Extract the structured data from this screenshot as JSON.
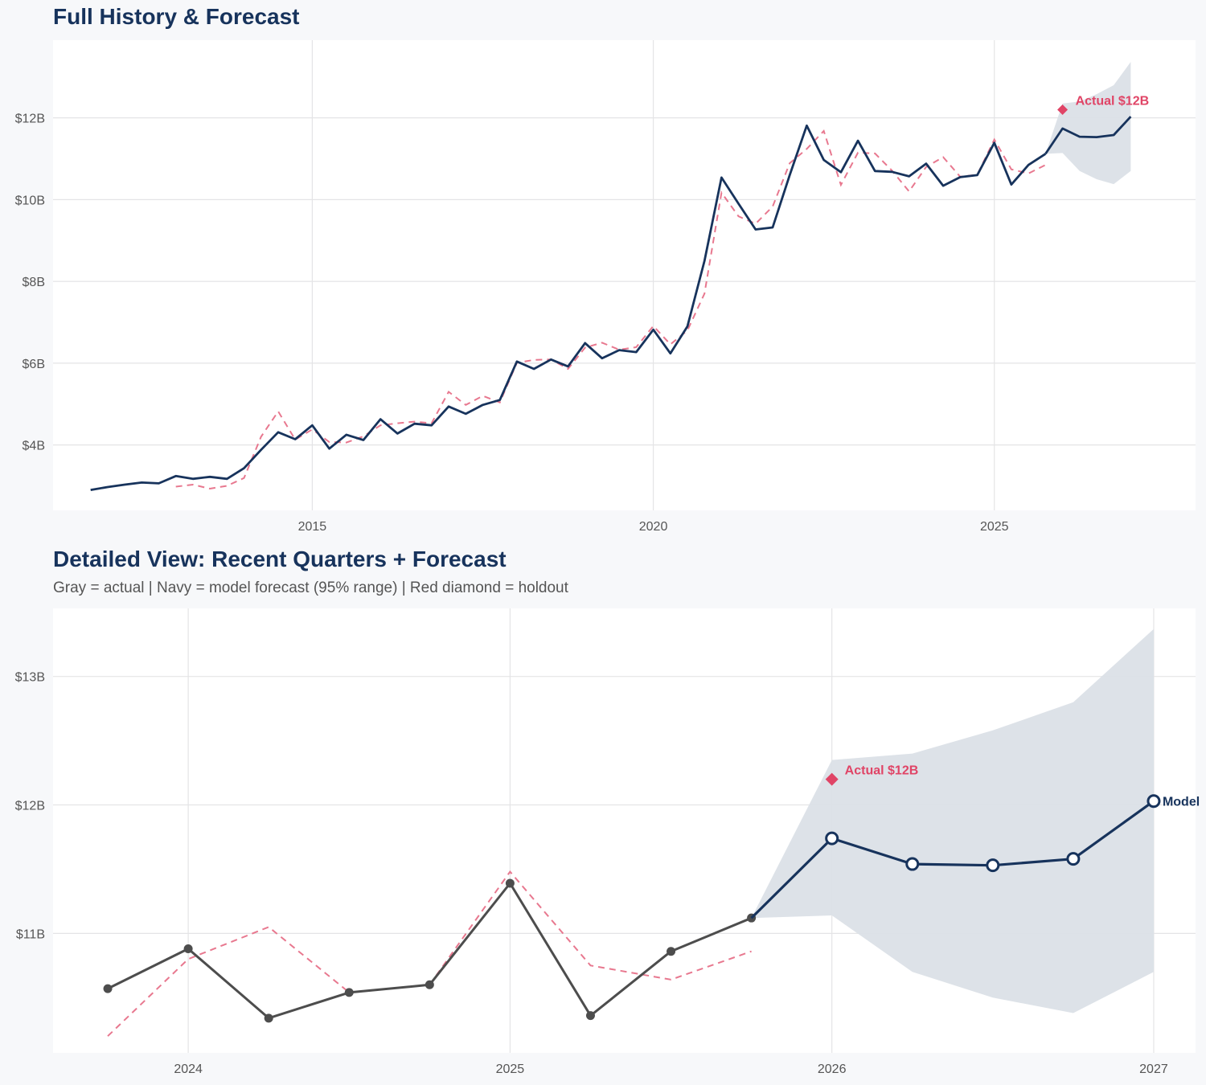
{
  "colors": {
    "navy": "#17335c",
    "actual_gray": "#4d4d4d",
    "fitted_red": "#e8788f",
    "holdout_red": "#e04466",
    "band": "#dbe0e7",
    "grid": "#e4e4e6",
    "panel": "#ffffff"
  },
  "chart_data": [
    {
      "type": "line",
      "title": "Full History & Forecast",
      "xlabel": "",
      "ylabel": "",
      "xlim": [
        2011.2,
        2027.95
      ],
      "ylim": [
        2.4,
        13.9
      ],
      "x_ticks": [
        2015,
        2020,
        2025
      ],
      "x_tick_labels": [
        "2015",
        "2020",
        "2025"
      ],
      "y_ticks": [
        4,
        6,
        8,
        10,
        12
      ],
      "y_tick_labels": [
        "$4B",
        "$6B",
        "$8B",
        "$10B",
        "$12B"
      ],
      "series": [
        {
          "name": "Actual",
          "style": "solid",
          "color": "#17335c",
          "x": [
            2011.75,
            2012.0,
            2012.25,
            2012.5,
            2012.75,
            2013.0,
            2013.25,
            2013.5,
            2013.75,
            2014.0,
            2014.25,
            2014.5,
            2014.75,
            2015.0,
            2015.25,
            2015.5,
            2015.75,
            2016.0,
            2016.25,
            2016.5,
            2016.75,
            2017.0,
            2017.25,
            2017.5,
            2017.75,
            2018.0,
            2018.25,
            2018.5,
            2018.75,
            2019.0,
            2019.25,
            2019.5,
            2019.75,
            2020.0,
            2020.25,
            2020.5,
            2020.75,
            2021.0,
            2021.25,
            2021.5,
            2021.75,
            2022.0,
            2022.25,
            2022.5,
            2022.75,
            2023.0,
            2023.25,
            2023.5,
            2023.75,
            2024.0,
            2024.25,
            2024.5,
            2024.75,
            2025.0,
            2025.25,
            2025.5,
            2025.75
          ],
          "values": [
            2.9,
            2.97,
            3.03,
            3.08,
            3.06,
            3.24,
            3.17,
            3.22,
            3.17,
            3.43,
            3.88,
            4.31,
            4.14,
            4.48,
            3.91,
            4.25,
            4.12,
            4.63,
            4.28,
            4.52,
            4.48,
            4.94,
            4.76,
            4.98,
            5.1,
            6.04,
            5.86,
            6.09,
            5.92,
            6.49,
            6.12,
            6.32,
            6.27,
            6.82,
            6.24,
            6.9,
            8.5,
            10.54,
            9.9,
            9.27,
            9.32,
            10.6,
            11.81,
            10.97,
            10.67,
            11.44,
            10.7,
            10.68,
            10.57,
            10.88,
            10.34,
            10.55,
            10.6,
            11.39,
            10.37,
            10.85,
            11.12
          ]
        },
        {
          "name": "Fitted",
          "style": "dashed",
          "color": "#e8788f",
          "x": [
            2013.0,
            2013.25,
            2013.5,
            2013.75,
            2014.0,
            2014.25,
            2014.5,
            2014.75,
            2015.0,
            2015.25,
            2015.5,
            2015.75,
            2016.0,
            2016.25,
            2016.5,
            2016.75,
            2017.0,
            2017.25,
            2017.5,
            2017.75,
            2018.0,
            2018.25,
            2018.5,
            2018.75,
            2019.0,
            2019.25,
            2019.5,
            2019.75,
            2020.0,
            2020.25,
            2020.5,
            2020.75,
            2021.0,
            2021.25,
            2021.5,
            2021.75,
            2022.0,
            2022.25,
            2022.5,
            2022.75,
            2023.0,
            2023.25,
            2023.5,
            2023.75,
            2024.0,
            2024.25,
            2024.5,
            2024.75,
            2025.0,
            2025.25,
            2025.5,
            2025.75
          ],
          "values": [
            2.98,
            3.03,
            2.93,
            3.0,
            3.19,
            4.2,
            4.82,
            4.13,
            4.38,
            4.07,
            4.06,
            4.21,
            4.48,
            4.53,
            4.57,
            4.53,
            5.3,
            4.98,
            5.2,
            5.04,
            6.01,
            6.08,
            6.09,
            5.86,
            6.38,
            6.5,
            6.33,
            6.39,
            6.91,
            6.46,
            6.8,
            7.7,
            10.17,
            9.59,
            9.41,
            9.83,
            10.89,
            11.24,
            11.68,
            10.36,
            11.15,
            11.13,
            10.71,
            10.2,
            10.8,
            11.04,
            10.56,
            10.61,
            11.47,
            10.74,
            10.64,
            10.85
          ]
        },
        {
          "name": "Model forecast",
          "style": "solid",
          "color": "#17335c",
          "x": [
            2025.75,
            2026.0,
            2026.25,
            2026.5,
            2026.75,
            2027.0
          ],
          "values": [
            11.12,
            11.74,
            11.54,
            11.53,
            11.58,
            12.03
          ]
        }
      ],
      "band": {
        "name": "95% range",
        "x": [
          2025.75,
          2026.0,
          2026.25,
          2026.5,
          2026.75,
          2027.0
        ],
        "lower": [
          11.12,
          11.14,
          10.7,
          10.5,
          10.38,
          10.7
        ],
        "upper": [
          11.12,
          12.35,
          12.4,
          12.58,
          12.8,
          13.37
        ]
      },
      "holdout": {
        "x": 2026.0,
        "value": 12.2,
        "label": "Actual $12B"
      }
    },
    {
      "type": "line",
      "title": "Detailed View: Recent Quarters + Forecast",
      "subtitle": "Gray = actual  |  Navy = model forecast (95% range)  |  Red diamond = holdout",
      "xlabel": "",
      "ylabel": "",
      "xlim": [
        2023.58,
        2027.13
      ],
      "ylim": [
        10.07,
        13.53
      ],
      "x_ticks": [
        2024,
        2025,
        2026,
        2027
      ],
      "x_tick_labels": [
        "2024",
        "2025",
        "2026",
        "2027"
      ],
      "y_ticks": [
        11,
        12,
        13
      ],
      "y_tick_labels": [
        "$11B",
        "$12B",
        "$13B"
      ],
      "series": [
        {
          "name": "Actual",
          "style": "solid-markers",
          "color": "#4d4d4d",
          "x": [
            2023.75,
            2024.0,
            2024.25,
            2024.5,
            2024.75,
            2025.0,
            2025.25,
            2025.5,
            2025.75
          ],
          "values": [
            10.57,
            10.88,
            10.34,
            10.54,
            10.6,
            11.39,
            10.36,
            10.86,
            11.12
          ]
        },
        {
          "name": "Fitted",
          "style": "dashed",
          "color": "#e8788f",
          "x": [
            2023.75,
            2024.0,
            2024.25,
            2024.5,
            2024.75,
            2025.0,
            2025.25,
            2025.5,
            2025.75
          ],
          "values": [
            10.2,
            10.8,
            11.05,
            10.54,
            10.6,
            11.48,
            10.75,
            10.64,
            10.86
          ]
        },
        {
          "name": "Model forecast",
          "style": "solid-open-markers",
          "color": "#17335c",
          "x": [
            2025.75,
            2026.0,
            2026.25,
            2026.5,
            2026.75,
            2027.0
          ],
          "values": [
            11.12,
            11.74,
            11.54,
            11.53,
            11.58,
            12.03
          ]
        }
      ],
      "band": {
        "name": "95% range",
        "x": [
          2025.75,
          2026.0,
          2026.25,
          2026.5,
          2026.75,
          2027.0
        ],
        "lower": [
          11.12,
          11.14,
          10.7,
          10.5,
          10.38,
          10.7
        ],
        "upper": [
          11.12,
          12.35,
          12.4,
          12.58,
          12.8,
          13.37
        ]
      },
      "holdout": {
        "x": 2026.0,
        "value": 12.2,
        "label": "Actual $12B"
      },
      "end_label": "Model"
    }
  ]
}
